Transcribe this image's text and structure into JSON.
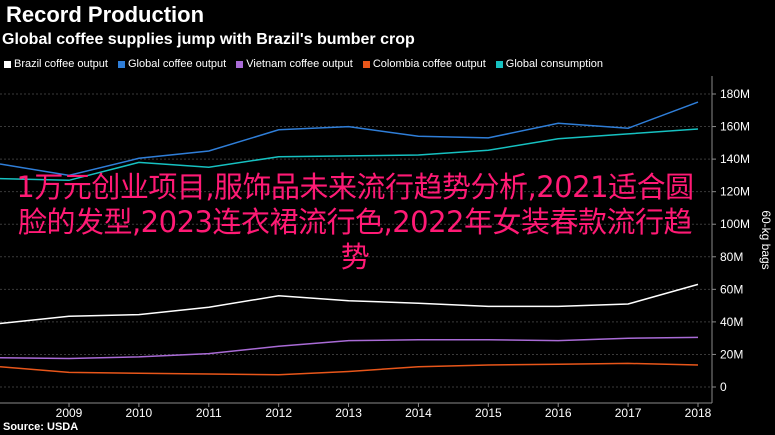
{
  "header": {
    "title": "Record Production",
    "subtitle": "Global coffee supplies jump with Brazil's bumber crop"
  },
  "source": "Source: USDA",
  "overlay_text": "1万元创业项目,服饰品未来流行趋势分析,2021适合圆脸的发型,2023连衣裙流行色,2022年女装春款流行趋势",
  "chart_data": {
    "type": "line",
    "title": "Record Production",
    "subtitle": "Global coffee supplies jump with Brazil's bumber crop",
    "xlabel": "",
    "ylabel": "60-kg bags",
    "ylim": [
      -5,
      186
    ],
    "x": [
      2008,
      2009,
      2010,
      2011,
      2012,
      2013,
      2014,
      2015,
      2016,
      2017,
      2018
    ],
    "x_ticks": [
      "2009",
      "2010",
      "2011",
      "2012",
      "2013",
      "2014",
      "2015",
      "2016",
      "2017",
      "2018"
    ],
    "y_ticks": [
      0,
      20,
      40,
      60,
      80,
      100,
      120,
      140,
      160,
      180
    ],
    "y_tick_labels": [
      "0",
      "20M",
      "40M",
      "60M",
      "80M",
      "100M",
      "120M",
      "140M",
      "160M",
      "180M"
    ],
    "legend_position": "top",
    "grid": true,
    "series": [
      {
        "name": "Brazil coffee output",
        "color": "#ffffff",
        "values": [
          39,
          43.5,
          44.5,
          49,
          56,
          53,
          51.5,
          49.5,
          49.5,
          51,
          63
        ]
      },
      {
        "name": "Global coffee output",
        "color": "#2f7ed8",
        "values": [
          137,
          130,
          140.5,
          145,
          158,
          160,
          154,
          153,
          162,
          159,
          175
        ]
      },
      {
        "name": "Vietnam coffee output",
        "color": "#a96bd6",
        "values": [
          18,
          17.5,
          18.5,
          20.5,
          25,
          28.5,
          29,
          29,
          28.5,
          30,
          30.5
        ]
      },
      {
        "name": "Colombia coffee output",
        "color": "#e8561a",
        "values": [
          12.5,
          9,
          8.5,
          8,
          7.5,
          9.5,
          12.5,
          13.5,
          14,
          14.5,
          13.5
        ]
      },
      {
        "name": "Global consumption",
        "color": "#16c1c1",
        "values": [
          128,
          127,
          138,
          135,
          141.5,
          142,
          142.5,
          145.5,
          152.5,
          155.5,
          158.5
        ]
      }
    ]
  }
}
